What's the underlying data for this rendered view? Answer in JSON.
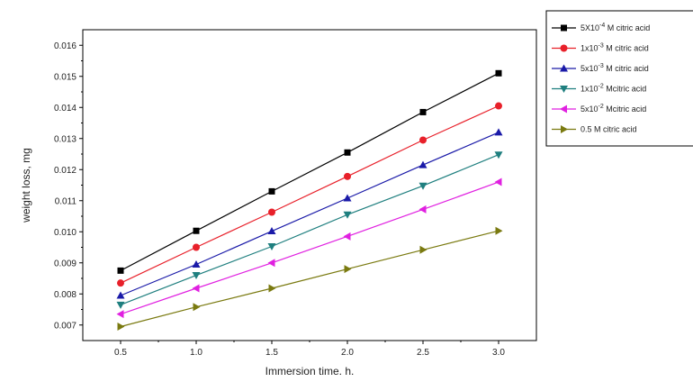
{
  "chart_data": {
    "type": "line",
    "title": "",
    "xlabel": "Immersion time. h.",
    "ylabel": "weight loss, mg",
    "x": [
      0.5,
      1.0,
      1.5,
      2.0,
      2.5,
      3.0
    ],
    "x_tick_labels": [
      "0.5",
      "1.0",
      "1.5",
      "2.0",
      "2.5",
      "3.0"
    ],
    "y_tick_values": [
      0.007,
      0.008,
      0.009,
      0.01,
      0.011,
      0.012,
      0.013,
      0.014,
      0.015,
      0.016
    ],
    "y_tick_labels": [
      "0.007",
      "0.008",
      "0.009",
      "0.010",
      "0.011",
      "0.012",
      "0.013",
      "0.014",
      "0.015",
      "0.016"
    ],
    "xlim": [
      0.25,
      3.25
    ],
    "ylim": [
      0.0065,
      0.0165
    ],
    "grid": false,
    "legend_position": "top-right, outside plot",
    "series": [
      {
        "name": "5X10-4 M citric acid",
        "legend_base": "5X10",
        "legend_exp": "-4",
        "legend_suffix": " M citric acid",
        "color": "#000000",
        "marker": "square",
        "values": [
          0.00875,
          0.01003,
          0.0113,
          0.01255,
          0.01385,
          0.0151
        ]
      },
      {
        "name": "1x10-3 M citric acid",
        "legend_base": "1x10",
        "legend_exp": "-3",
        "legend_suffix": " M citric acid",
        "color": "#e8202a",
        "marker": "circle",
        "values": [
          0.00835,
          0.0095,
          0.01063,
          0.01178,
          0.01295,
          0.01405
        ]
      },
      {
        "name": "5x10-3 M citric acid",
        "legend_base": "5x10",
        "legend_exp": "-3",
        "legend_suffix": " M citric acid",
        "color": "#1a1aa8",
        "marker": "triangle-up",
        "values": [
          0.00795,
          0.00895,
          0.01002,
          0.01108,
          0.01215,
          0.0132
        ]
      },
      {
        "name": "1x10-2 Mcitric acid",
        "legend_base": "1x10",
        "legend_exp": "-2",
        "legend_suffix": " Mcitric acid",
        "color": "#1f7f7f",
        "marker": "triangle-down",
        "values": [
          0.00765,
          0.0086,
          0.00953,
          0.01055,
          0.01148,
          0.01248
        ]
      },
      {
        "name": "5x10-2 Mcitric acid",
        "legend_base": "5x10",
        "legend_exp": "-2",
        "legend_suffix": " Mcitric acid",
        "color": "#e020e0",
        "marker": "triangle-left",
        "values": [
          0.00735,
          0.00818,
          0.009,
          0.00985,
          0.01072,
          0.0116
        ]
      },
      {
        "name": "0.5 M citric acid",
        "legend_base": "0.5",
        "legend_exp": "",
        "legend_suffix": "     M citric acid",
        "color": "#7a7a10",
        "marker": "triangle-right",
        "values": [
          0.00695,
          0.00758,
          0.00818,
          0.0088,
          0.00942,
          0.01003
        ]
      }
    ]
  }
}
